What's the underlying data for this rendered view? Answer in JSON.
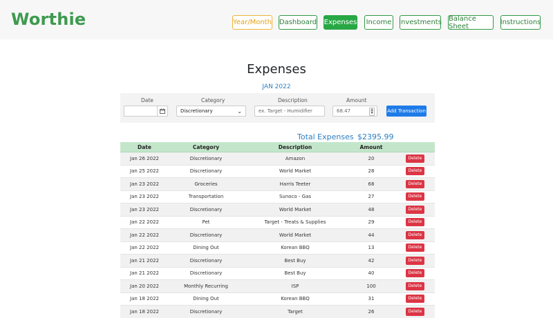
{
  "brand": "Worthie",
  "nav": {
    "year_month": "Year/Month",
    "dashboard": "Dashboard",
    "expenses": "Expenses",
    "income": "Income",
    "investments": "Investments",
    "balance_sheet": "Balance Sheet",
    "instructions": "Instructions"
  },
  "page": {
    "title": "Expenses",
    "period": "JAN 2022"
  },
  "form": {
    "date_label": "Date",
    "category_label": "Category",
    "description_label": "Description",
    "amount_label": "Amount",
    "date_value": "",
    "category_value": "Discretionary",
    "description_placeholder": "ex. Target - Humidifier",
    "amount_placeholder": "68.47",
    "add_button": "Add Transaction"
  },
  "totals": {
    "label": "Total Expenses",
    "value": "$2395.99"
  },
  "table": {
    "headers": [
      "Date",
      "Category",
      "Description",
      "Amount",
      ""
    ],
    "delete_label": "Delete",
    "rows": [
      {
        "date": "Jan 26 2022",
        "category": "Discretionary",
        "description": "Amazon",
        "amount": "20"
      },
      {
        "date": "Jan 25 2022",
        "category": "Discretionary",
        "description": "World Market",
        "amount": "28"
      },
      {
        "date": "Jan 23 2022",
        "category": "Groceries",
        "description": "Harris Teeter",
        "amount": "68"
      },
      {
        "date": "Jan 23 2022",
        "category": "Transportation",
        "description": "Sunoco - Gas",
        "amount": "27"
      },
      {
        "date": "Jan 23 2022",
        "category": "Discretionary",
        "description": "World Market",
        "amount": "48"
      },
      {
        "date": "Jan 22 2022",
        "category": "Pet",
        "description": "Target - Treats & Supplies",
        "amount": "29"
      },
      {
        "date": "Jan 22 2022",
        "category": "Discretionary",
        "description": "World Market",
        "amount": "44"
      },
      {
        "date": "Jan 22 2022",
        "category": "Dining Out",
        "description": "Korean BBQ",
        "amount": "13"
      },
      {
        "date": "Jan 21 2022",
        "category": "Discretionary",
        "description": "Best Buy",
        "amount": "42"
      },
      {
        "date": "Jan 21 2022",
        "category": "Discretionary",
        "description": "Best Buy",
        "amount": "40"
      },
      {
        "date": "Jan 20 2022",
        "category": "Monthly Recurring",
        "description": "ISP",
        "amount": "100"
      },
      {
        "date": "Jan 18 2022",
        "category": "Dining Out",
        "description": "Korean BBQ",
        "amount": "31"
      },
      {
        "date": "Jan 18 2022",
        "category": "Discretionary",
        "description": "Target",
        "amount": "26"
      }
    ]
  }
}
